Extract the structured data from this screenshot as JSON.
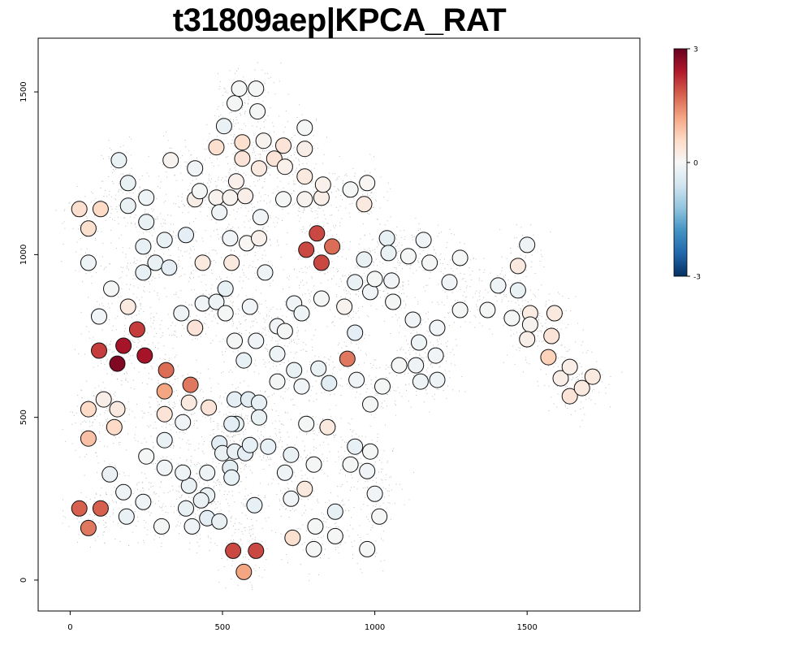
{
  "chart_data": {
    "type": "scatter",
    "title": "t31809aep|KPCA_RAT",
    "xlabel": "",
    "ylabel": "",
    "xlim": [
      -105,
      1870
    ],
    "ylim": [
      -95,
      1665
    ],
    "x_ticks": [
      0,
      500,
      1000,
      1500
    ],
    "y_ticks": [
      0,
      500,
      1000,
      1500
    ],
    "grid": false,
    "legend": {
      "type": "colorbar",
      "placement": "top-right",
      "min": -3,
      "max": 3,
      "tick_labels": [
        "3",
        "0",
        "-3"
      ],
      "colors": [
        "#053061",
        "#2166ac",
        "#4393c3",
        "#92c5de",
        "#d1e5f0",
        "#f7f7f7",
        "#fddbc7",
        "#f4a582",
        "#d6604d",
        "#b2182b",
        "#67001f"
      ]
    },
    "background_cells": {
      "color": "#bdbdbd",
      "description_clusters": [
        [
          150,
          1215
        ],
        [
          280,
          1100
        ],
        [
          450,
          1180
        ],
        [
          560,
          1310
        ],
        [
          570,
          1480
        ],
        [
          700,
          1290
        ],
        [
          800,
          1180
        ],
        [
          960,
          1180
        ],
        [
          1000,
          1000
        ],
        [
          1150,
          990
        ],
        [
          1350,
          920
        ],
        [
          1500,
          800
        ],
        [
          1640,
          640
        ],
        [
          900,
          880
        ],
        [
          720,
          730
        ],
        [
          570,
          760
        ],
        [
          480,
          850
        ],
        [
          300,
          780
        ],
        [
          150,
          650
        ],
        [
          80,
          500
        ],
        [
          300,
          540
        ],
        [
          520,
          450
        ],
        [
          700,
          460
        ],
        [
          900,
          420
        ],
        [
          1000,
          300
        ],
        [
          860,
          200
        ],
        [
          700,
          260
        ],
        [
          450,
          230
        ],
        [
          280,
          250
        ],
        [
          120,
          230
        ],
        [
          580,
          160
        ],
        [
          1200,
          700
        ],
        [
          1050,
          620
        ],
        [
          760,
          960
        ],
        [
          350,
          970
        ],
        [
          200,
          960
        ]
      ]
    },
    "points": [
      [
        30,
        1140,
        0.5
      ],
      [
        100,
        1140,
        0.6
      ],
      [
        60,
        1080,
        0.5
      ],
      [
        60,
        975,
        -0.15
      ],
      [
        160,
        1290,
        -0.2
      ],
      [
        190,
        1220,
        -0.2
      ],
      [
        190,
        1150,
        -0.2
      ],
      [
        250,
        1175,
        -0.15
      ],
      [
        250,
        1100,
        -0.2
      ],
      [
        240,
        1025,
        -0.25
      ],
      [
        240,
        945,
        -0.25
      ],
      [
        280,
        975,
        -0.2
      ],
      [
        310,
        1045,
        -0.2
      ],
      [
        325,
        960,
        -0.3
      ],
      [
        330,
        1290,
        0.1
      ],
      [
        380,
        1060,
        -0.3
      ],
      [
        410,
        1265,
        -0.1
      ],
      [
        410,
        1170,
        0.2
      ],
      [
        425,
        1195,
        -0.05
      ],
      [
        435,
        975,
        0.3
      ],
      [
        480,
        1330,
        0.5
      ],
      [
        480,
        1175,
        0.1
      ],
      [
        490,
        1130,
        -0.15
      ],
      [
        505,
        1395,
        -0.2
      ],
      [
        525,
        1175,
        0.1
      ],
      [
        525,
        1050,
        -0.1
      ],
      [
        530,
        975,
        0.3
      ],
      [
        540,
        1465,
        -0.05
      ],
      [
        545,
        1225,
        0.15
      ],
      [
        555,
        1510,
        -0.05
      ],
      [
        565,
        1345,
        0.5
      ],
      [
        565,
        1295,
        0.4
      ],
      [
        575,
        1180,
        0.2
      ],
      [
        580,
        1035,
        0.05
      ],
      [
        610,
        1510,
        -0.05
      ],
      [
        615,
        1440,
        -0.05
      ],
      [
        620,
        1265,
        0.3
      ],
      [
        620,
        1050,
        0.15
      ],
      [
        625,
        1115,
        -0.1
      ],
      [
        635,
        1350,
        0.1
      ],
      [
        640,
        945,
        -0.15
      ],
      [
        670,
        1295,
        0.4
      ],
      [
        700,
        1335,
        0.4
      ],
      [
        700,
        1170,
        -0.05
      ],
      [
        705,
        1270,
        0.15
      ],
      [
        770,
        1390,
        -0.05
      ],
      [
        770,
        1325,
        0.2
      ],
      [
        770,
        1240,
        0.3
      ],
      [
        770,
        1170,
        0.1
      ],
      [
        775,
        1015,
        2.0
      ],
      [
        810,
        1065,
        2.0
      ],
      [
        825,
        975,
        2.0
      ],
      [
        825,
        1175,
        0.2
      ],
      [
        830,
        1215,
        0.15
      ],
      [
        860,
        1025,
        1.7
      ],
      [
        920,
        1200,
        -0.05
      ],
      [
        965,
        1155,
        0.3
      ],
      [
        975,
        1220,
        0.05
      ],
      [
        135,
        895,
        -0.05
      ],
      [
        95,
        810,
        -0.1
      ],
      [
        190,
        840,
        0.3
      ],
      [
        220,
        770,
        2.1
      ],
      [
        95,
        705,
        2.1
      ],
      [
        175,
        720,
        2.5
      ],
      [
        245,
        690,
        2.5
      ],
      [
        155,
        665,
        2.8
      ],
      [
        315,
        645,
        1.7
      ],
      [
        395,
        600,
        1.6
      ],
      [
        310,
        580,
        1.2
      ],
      [
        310,
        510,
        0.4
      ],
      [
        390,
        545,
        0.3
      ],
      [
        455,
        530,
        0.4
      ],
      [
        60,
        525,
        0.6
      ],
      [
        110,
        555,
        0.2
      ],
      [
        155,
        525,
        0.3
      ],
      [
        145,
        470,
        0.6
      ],
      [
        60,
        435,
        0.9
      ],
      [
        365,
        820,
        -0.15
      ],
      [
        410,
        775,
        0.4
      ],
      [
        435,
        850,
        -0.1
      ],
      [
        480,
        855,
        -0.15
      ],
      [
        510,
        895,
        -0.25
      ],
      [
        510,
        820,
        -0.05
      ],
      [
        540,
        735,
        -0.05
      ],
      [
        570,
        675,
        -0.25
      ],
      [
        590,
        840,
        -0.1
      ],
      [
        610,
        735,
        -0.1
      ],
      [
        680,
        780,
        -0.1
      ],
      [
        680,
        695,
        -0.15
      ],
      [
        705,
        765,
        -0.05
      ],
      [
        735,
        850,
        -0.1
      ],
      [
        760,
        820,
        -0.15
      ],
      [
        680,
        610,
        -0.05
      ],
      [
        735,
        645,
        -0.2
      ],
      [
        760,
        595,
        -0.1
      ],
      [
        815,
        650,
        -0.2
      ],
      [
        850,
        605,
        -0.35
      ],
      [
        825,
        865,
        -0.05
      ],
      [
        900,
        840,
        0.1
      ],
      [
        910,
        680,
        1.6
      ],
      [
        935,
        760,
        -0.3
      ],
      [
        935,
        915,
        -0.2
      ],
      [
        965,
        985,
        -0.2
      ],
      [
        985,
        885,
        -0.1
      ],
      [
        1000,
        925,
        -0.05
      ],
      [
        1040,
        1050,
        -0.25
      ],
      [
        1045,
        1005,
        -0.2
      ],
      [
        1055,
        920,
        -0.1
      ],
      [
        1060,
        855,
        -0.05
      ],
      [
        1110,
        995,
        -0.05
      ],
      [
        1160,
        1045,
        -0.1
      ],
      [
        1180,
        975,
        -0.05
      ],
      [
        1245,
        915,
        -0.1
      ],
      [
        1280,
        990,
        -0.05
      ],
      [
        1280,
        830,
        -0.05
      ],
      [
        1370,
        830,
        -0.05
      ],
      [
        1405,
        905,
        -0.15
      ],
      [
        1450,
        805,
        -0.05
      ],
      [
        1470,
        965,
        0.3
      ],
      [
        1470,
        890,
        -0.2
      ],
      [
        1500,
        1030,
        -0.15
      ],
      [
        1510,
        820,
        0.25
      ],
      [
        1510,
        785,
        0.1
      ],
      [
        1500,
        740,
        0.2
      ],
      [
        1590,
        820,
        0.3
      ],
      [
        1580,
        750,
        0.4
      ],
      [
        1570,
        685,
        0.7
      ],
      [
        1610,
        620,
        0.2
      ],
      [
        1640,
        655,
        0.2
      ],
      [
        1640,
        565,
        0.4
      ],
      [
        1680,
        590,
        0.3
      ],
      [
        1715,
        625,
        0.3
      ],
      [
        1125,
        800,
        -0.1
      ],
      [
        1145,
        730,
        -0.15
      ],
      [
        1135,
        660,
        -0.15
      ],
      [
        1150,
        610,
        -0.15
      ],
      [
        1205,
        775,
        -0.1
      ],
      [
        1200,
        690,
        -0.1
      ],
      [
        1205,
        615,
        -0.15
      ],
      [
        1080,
        660,
        -0.05
      ],
      [
        1025,
        595,
        -0.05
      ],
      [
        985,
        540,
        -0.05
      ],
      [
        940,
        615,
        -0.1
      ],
      [
        935,
        410,
        -0.25
      ],
      [
        920,
        355,
        -0.05
      ],
      [
        985,
        395,
        -0.05
      ],
      [
        975,
        335,
        -0.1
      ],
      [
        1000,
        265,
        -0.1
      ],
      [
        1015,
        195,
        -0.05
      ],
      [
        975,
        95,
        -0.05
      ],
      [
        870,
        210,
        -0.25
      ],
      [
        870,
        135,
        -0.05
      ],
      [
        805,
        165,
        -0.05
      ],
      [
        800,
        95,
        -0.05
      ],
      [
        770,
        280,
        0.3
      ],
      [
        730,
        130,
        0.5
      ],
      [
        725,
        250,
        -0.1
      ],
      [
        705,
        330,
        -0.15
      ],
      [
        725,
        385,
        -0.2
      ],
      [
        775,
        480,
        -0.05
      ],
      [
        800,
        355,
        -0.05
      ],
      [
        845,
        470,
        0.3
      ],
      [
        540,
        555,
        -0.3
      ],
      [
        585,
        555,
        -0.35
      ],
      [
        620,
        545,
        -0.25
      ],
      [
        620,
        500,
        -0.2
      ],
      [
        545,
        480,
        -0.25
      ],
      [
        530,
        480,
        -0.3
      ],
      [
        490,
        420,
        -0.35
      ],
      [
        500,
        390,
        -0.2
      ],
      [
        540,
        395,
        -0.2
      ],
      [
        575,
        390,
        -0.3
      ],
      [
        590,
        415,
        -0.25
      ],
      [
        650,
        410,
        -0.25
      ],
      [
        525,
        345,
        -0.35
      ],
      [
        530,
        315,
        -0.25
      ],
      [
        605,
        230,
        -0.25
      ],
      [
        450,
        260,
        -0.2
      ],
      [
        430,
        245,
        -0.2
      ],
      [
        450,
        190,
        -0.3
      ],
      [
        490,
        180,
        -0.2
      ],
      [
        400,
        165,
        -0.15
      ],
      [
        380,
        220,
        -0.2
      ],
      [
        390,
        290,
        -0.2
      ],
      [
        370,
        330,
        -0.15
      ],
      [
        450,
        330,
        -0.15
      ],
      [
        310,
        345,
        -0.1
      ],
      [
        310,
        430,
        -0.2
      ],
      [
        370,
        485,
        -0.1
      ],
      [
        250,
        380,
        -0.05
      ],
      [
        130,
        325,
        -0.2
      ],
      [
        175,
        270,
        -0.15
      ],
      [
        185,
        195,
        -0.2
      ],
      [
        240,
        240,
        -0.15
      ],
      [
        300,
        165,
        -0.05
      ],
      [
        30,
        220,
        1.8
      ],
      [
        100,
        220,
        1.8
      ],
      [
        60,
        160,
        1.6
      ],
      [
        535,
        90,
        2.0
      ],
      [
        610,
        90,
        2.0
      ],
      [
        570,
        25,
        1.2
      ]
    ]
  }
}
